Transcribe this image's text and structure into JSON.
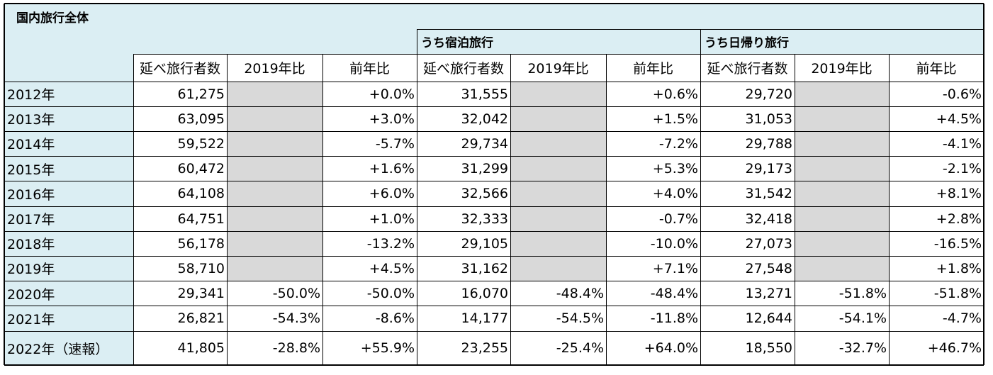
{
  "table": {
    "title": "国内旅行全体",
    "groups": [
      "うち宿泊旅行",
      "うち日帰り旅行"
    ],
    "column_headers": [
      "延べ旅行者数",
      "2019年比",
      "前年比",
      "延べ旅行者数",
      "2019年比",
      "前年比",
      "延べ旅行者数",
      "2019年比",
      "前年比"
    ],
    "rows": [
      {
        "label": "2012年",
        "cells": [
          "61,275",
          "",
          "+0.0%",
          "31,555",
          "",
          "+0.6%",
          "29,720",
          "",
          "-0.6%"
        ]
      },
      {
        "label": "2013年",
        "cells": [
          "63,095",
          "",
          "+3.0%",
          "32,042",
          "",
          "+1.5%",
          "31,053",
          "",
          "+4.5%"
        ]
      },
      {
        "label": "2014年",
        "cells": [
          "59,522",
          "",
          "-5.7%",
          "29,734",
          "",
          "-7.2%",
          "29,788",
          "",
          "-4.1%"
        ]
      },
      {
        "label": "2015年",
        "cells": [
          "60,472",
          "",
          "+1.6%",
          "31,299",
          "",
          "+5.3%",
          "29,173",
          "",
          "-2.1%"
        ]
      },
      {
        "label": "2016年",
        "cells": [
          "64,108",
          "",
          "+6.0%",
          "32,566",
          "",
          "+4.0%",
          "31,542",
          "",
          "+8.1%"
        ]
      },
      {
        "label": "2017年",
        "cells": [
          "64,751",
          "",
          "+1.0%",
          "32,333",
          "",
          "-0.7%",
          "32,418",
          "",
          "+2.8%"
        ]
      },
      {
        "label": "2018年",
        "cells": [
          "56,178",
          "",
          "-13.2%",
          "29,105",
          "",
          "-10.0%",
          "27,073",
          "",
          "-16.5%"
        ]
      },
      {
        "label": "2019年",
        "cells": [
          "58,710",
          "",
          "+4.5%",
          "31,162",
          "",
          "+7.1%",
          "27,548",
          "",
          "+1.8%"
        ]
      },
      {
        "label": "2020年",
        "cells": [
          "29,341",
          "-50.0%",
          "-50.0%",
          "16,070",
          "-48.4%",
          "-48.4%",
          "13,271",
          "-51.8%",
          "-51.8%"
        ]
      },
      {
        "label": "2021年",
        "cells": [
          "26,821",
          "-54.3%",
          "-8.6%",
          "14,177",
          "-54.5%",
          "-11.8%",
          "12,644",
          "-54.1%",
          "-4.7%"
        ]
      },
      {
        "label": "2022年（速報）",
        "cells": [
          "41,805",
          "-28.8%",
          "+55.9%",
          "23,255",
          "-25.4%",
          "+64.0%",
          "18,550",
          "-32.7%",
          "+46.7%"
        ]
      }
    ],
    "greyed_out_rows": 8,
    "colors": {
      "header_tint": "#dbeef3",
      "greyed_cell": "#d9d9d9",
      "border": "#000000"
    }
  }
}
